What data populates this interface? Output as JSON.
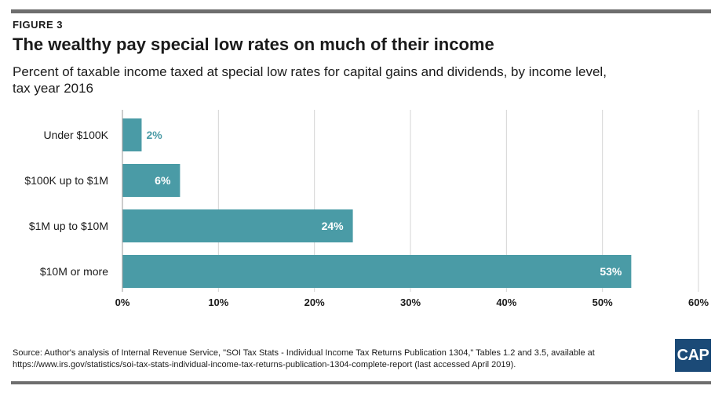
{
  "figure_label": "FIGURE 3",
  "title": "The wealthy pay special low rates on much of their income",
  "subtitle": "Percent of taxable income taxed at special low rates for capital gains and dividends, by income level, tax year 2016",
  "source": "Source: Author's analysis of Internal Revenue Service, \"SOI Tax Stats - Individual Income Tax Returns Publication 1304,\" Tables 1.2 and 3.5, available at https://www.irs.gov/statistics/soi-tax-stats-individual-income-tax-returns-publication-1304-complete-report (last accessed April 2019).",
  "logo_text": "CAP",
  "colors": {
    "bar": "#4a9ba6",
    "grid": "#d4d4d4",
    "axis": "#999999",
    "label_on_bar": "#ffffff",
    "label_outside": "#4a9ba6"
  },
  "chart_data": {
    "type": "bar",
    "orientation": "horizontal",
    "categories": [
      "Under $100K",
      "$100K up to $1M",
      "$1M up to $10M",
      "$10M or more"
    ],
    "values": [
      2,
      6,
      24,
      53
    ],
    "data_labels": [
      "2%",
      "6%",
      "24%",
      "53%"
    ],
    "xlim": [
      0,
      60
    ],
    "xticks": [
      0,
      10,
      20,
      30,
      40,
      50,
      60
    ],
    "xtick_labels": [
      "0%",
      "10%",
      "20%",
      "30%",
      "40%",
      "50%",
      "60%"
    ],
    "grid": true,
    "legend": "none"
  }
}
